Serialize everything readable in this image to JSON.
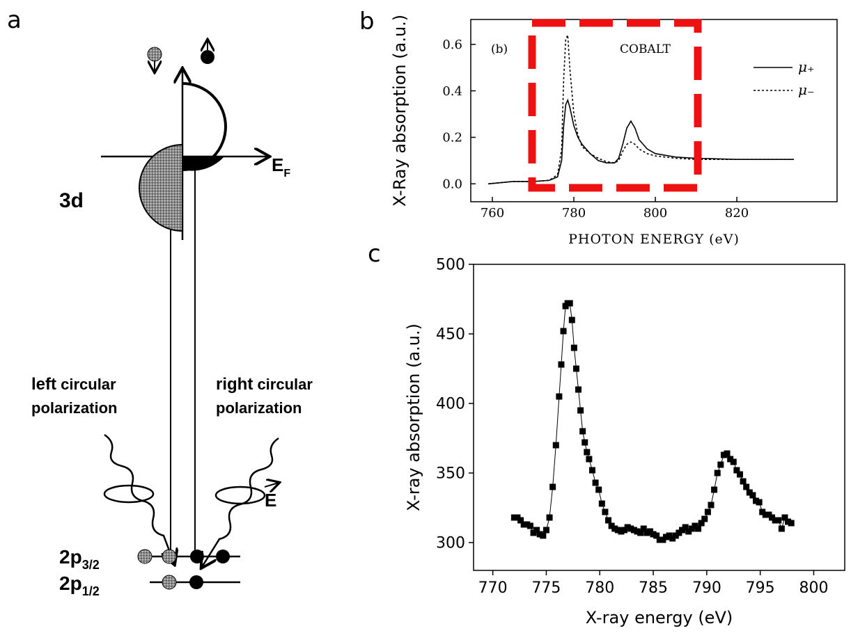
{
  "diagram": {
    "panel_label": "a",
    "band": "3d",
    "fermi": {
      "label": "E",
      "subscript": "F"
    },
    "left_polarization": {
      "bold": "left",
      "rest": " circular",
      "line2": "polarization"
    },
    "right_polarization": {
      "bold": "right",
      "rest": " circular",
      "line2": "polarization"
    },
    "field": "E",
    "levels": [
      {
        "label": "2p",
        "subscript": "3/2"
      },
      {
        "label": "2p",
        "subscript": "1/2"
      }
    ]
  },
  "chart_data": [
    {
      "type": "line",
      "panel_label": "b",
      "annotations": [
        "(b)",
        "COBALT"
      ],
      "xlabel": "PHOTON ENERGY (eV)",
      "ylabel": "X-Ray absorption (a.u.)",
      "x": [
        759,
        765,
        770,
        774,
        776,
        777,
        777.5,
        778,
        778.5,
        779,
        780,
        781,
        782,
        784,
        786,
        788,
        790,
        791,
        792,
        793,
        794,
        795,
        796,
        798,
        800,
        805,
        810,
        820,
        834
      ],
      "series": [
        {
          "name": "μ₊",
          "color": "#000000",
          "style": "solid",
          "values": [
            0,
            0.01,
            0.01,
            0.015,
            0.03,
            0.1,
            0.25,
            0.34,
            0.36,
            0.33,
            0.25,
            0.2,
            0.17,
            0.13,
            0.1,
            0.09,
            0.09,
            0.11,
            0.17,
            0.24,
            0.27,
            0.24,
            0.19,
            0.15,
            0.13,
            0.115,
            0.11,
            0.105,
            0.105
          ]
        },
        {
          "name": "μ₋",
          "color": "#000000",
          "style": "dotted",
          "values": [
            0,
            0.01,
            0.01,
            0.015,
            0.04,
            0.15,
            0.45,
            0.62,
            0.64,
            0.5,
            0.3,
            0.21,
            0.16,
            0.13,
            0.11,
            0.095,
            0.09,
            0.1,
            0.14,
            0.17,
            0.18,
            0.17,
            0.15,
            0.13,
            0.12,
            0.11,
            0.105,
            0.105,
            0.105
          ]
        }
      ],
      "xlim": [
        754.7,
        844.6
      ],
      "ylim": [
        -0.077,
        0.707
      ],
      "xticks": [
        760,
        780,
        800,
        820
      ],
      "yticks": [
        {
          "value": 0,
          "label": "0.0"
        },
        0.2,
        0.4,
        0.6
      ],
      "legend": "upper right"
    },
    {
      "type": "scatter",
      "panel_label": "c",
      "xlabel": "X-ray energy (eV)",
      "ylabel": "X-ray absorption (a.u.)",
      "color": "#000000",
      "marker": "square",
      "connect": true,
      "x": [
        772.0,
        772.3,
        772.6,
        772.9,
        773.2,
        773.5,
        773.8,
        774.1,
        774.4,
        774.7,
        775.0,
        775.3,
        775.6,
        775.9,
        776.2,
        776.4,
        776.6,
        776.8,
        777.0,
        777.2,
        777.4,
        777.6,
        777.8,
        778.0,
        778.2,
        778.4,
        778.6,
        778.8,
        779.0,
        779.3,
        779.6,
        779.9,
        780.2,
        780.5,
        780.8,
        781.1,
        781.4,
        781.7,
        782.0,
        782.3,
        782.6,
        782.9,
        783.2,
        783.5,
        783.8,
        784.1,
        784.4,
        784.7,
        785.0,
        785.3,
        785.6,
        785.9,
        786.2,
        786.5,
        786.8,
        787.1,
        787.4,
        787.7,
        788.0,
        788.3,
        788.6,
        788.9,
        789.2,
        789.5,
        789.8,
        790.1,
        790.4,
        790.7,
        791.0,
        791.3,
        791.6,
        791.9,
        792.2,
        792.5,
        792.8,
        793.1,
        793.4,
        793.7,
        794.0,
        794.3,
        794.6,
        794.9,
        795.2,
        795.5,
        795.8,
        796.1,
        796.4,
        796.7,
        797.0,
        797.3,
        797.6,
        797.9
      ],
      "values": [
        318,
        318,
        316,
        313,
        313,
        312,
        307,
        309,
        306,
        305,
        309,
        318,
        340,
        370,
        405,
        428,
        452,
        470,
        472,
        472,
        460,
        440,
        425,
        410,
        395,
        380,
        372,
        365,
        360,
        352,
        343,
        338,
        328,
        322,
        316,
        312,
        310,
        309,
        308,
        309,
        311,
        310,
        309,
        308,
        307,
        310,
        307,
        308,
        306,
        305,
        302,
        302,
        304,
        305,
        303,
        305,
        307,
        309,
        311,
        308,
        310,
        312,
        310,
        314,
        317,
        322,
        327,
        338,
        350,
        356,
        363,
        364,
        360,
        358,
        352,
        349,
        344,
        340,
        336,
        334,
        330,
        329,
        322,
        320,
        320,
        318,
        316,
        316,
        310,
        318,
        315,
        314
      ],
      "xlim": [
        768.2,
        802.9
      ],
      "ylim": [
        280,
        500
      ],
      "xticks": [
        770,
        775,
        780,
        785,
        790,
        795,
        800
      ],
      "yticks": [
        300,
        350,
        400,
        450,
        500
      ]
    }
  ]
}
